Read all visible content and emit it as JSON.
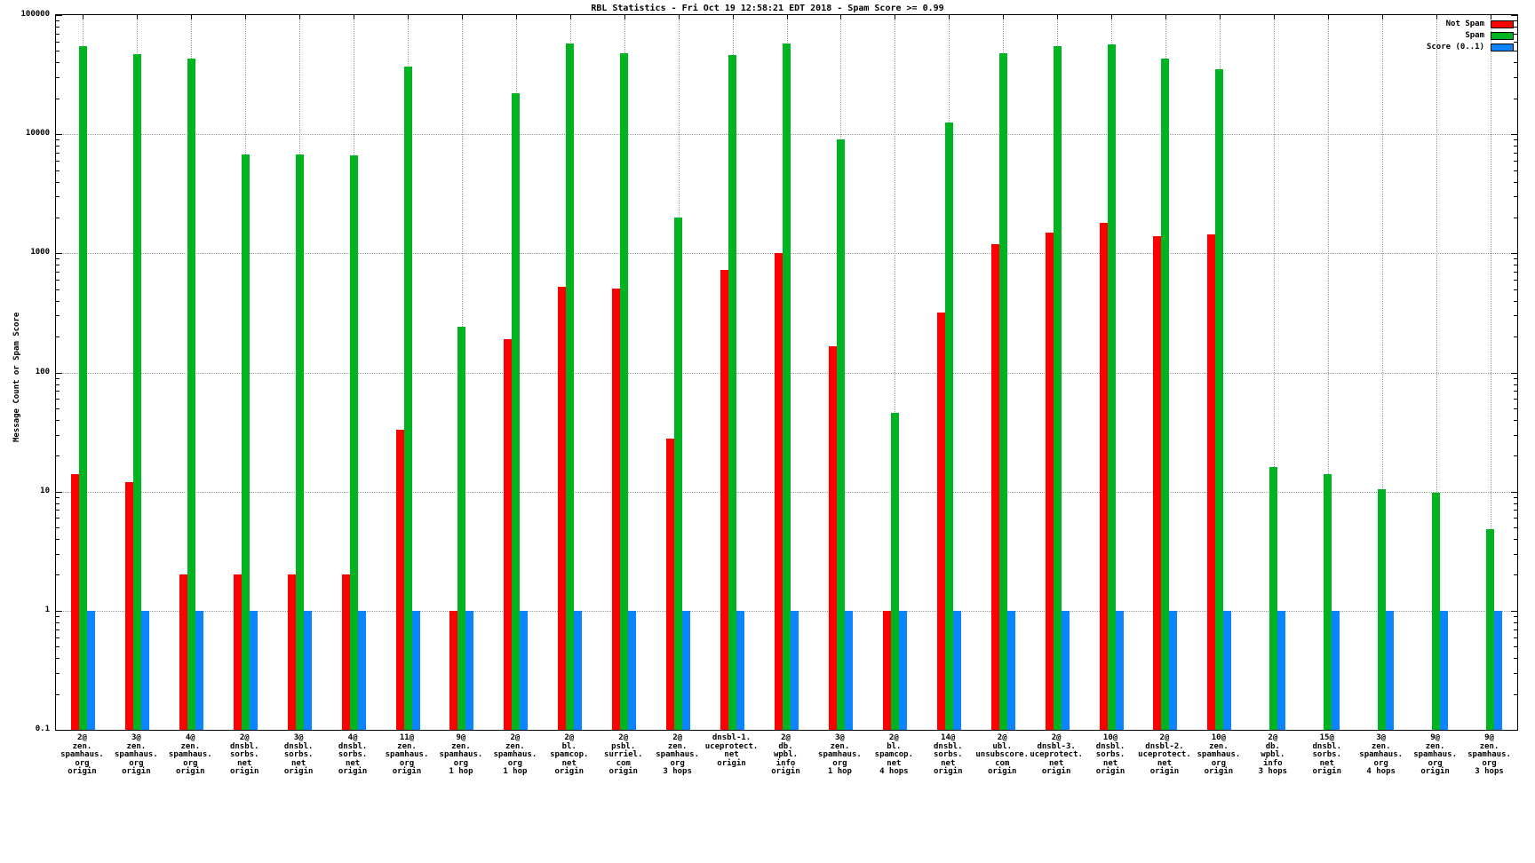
{
  "title": "RBL Statistics - Fri Oct 19 12:58:21 EDT 2018 - Spam Score >= 0.99",
  "ylabel": "Message Count or Spam Score",
  "legend": [
    {
      "label": "Not Spam",
      "color": "#ff0000"
    },
    {
      "label": "Spam",
      "color": "#00b321"
    },
    {
      "label": "Score (0..1)",
      "color": "#0a84ff"
    }
  ],
  "chart_data": {
    "type": "bar",
    "scale": "log",
    "title": "RBL Statistics - Fri Oct 19 12:58:21 EDT 2018 - Spam Score >= 0.99",
    "xlabel": "",
    "ylabel": "Message Count or Spam Score",
    "ylim": [
      0.1,
      100000
    ],
    "yticks": [
      0.1,
      1,
      10,
      100,
      1000,
      10000,
      100000
    ],
    "grid": true,
    "legend_position": "top-right",
    "categories": [
      [
        "2@",
        "zen.",
        "spamhaus.",
        "org",
        "origin"
      ],
      [
        "3@",
        "zen.",
        "spamhaus.",
        "org",
        "origin"
      ],
      [
        "4@",
        "zen.",
        "spamhaus.",
        "org",
        "origin"
      ],
      [
        "2@",
        "dnsbl.",
        "sorbs.",
        "net",
        "origin"
      ],
      [
        "3@",
        "dnsbl.",
        "sorbs.",
        "net",
        "origin"
      ],
      [
        "4@",
        "dnsbl.",
        "sorbs.",
        "net",
        "origin"
      ],
      [
        "11@",
        "zen.",
        "spamhaus.",
        "org",
        "origin"
      ],
      [
        "9@",
        "zen.",
        "spamhaus.",
        "org",
        "1 hop"
      ],
      [
        "2@",
        "zen.",
        "spamhaus.",
        "org",
        "1 hop"
      ],
      [
        "2@",
        "bl.",
        "spamcop.",
        "net",
        "origin"
      ],
      [
        "2@",
        "psbl.",
        "surriel.",
        "com",
        "origin"
      ],
      [
        "2@",
        "zen.",
        "spamhaus.",
        "org",
        "3 hops"
      ],
      [
        "dnsbl-1.",
        "uceprotect.",
        "net",
        "origin"
      ],
      [
        "2@",
        "db.",
        "wpbl.",
        "info",
        "origin"
      ],
      [
        "3@",
        "zen.",
        "spamhaus.",
        "org",
        "1 hop"
      ],
      [
        "2@",
        "bl.",
        "spamcop.",
        "net",
        "4 hops"
      ],
      [
        "14@",
        "dnsbl.",
        "sorbs.",
        "net",
        "origin"
      ],
      [
        "2@",
        "ubl.",
        "unsubscore.",
        "com",
        "origin"
      ],
      [
        "2@",
        "dnsbl-3.",
        "uceprotect.",
        "net",
        "origin"
      ],
      [
        "10@",
        "dnsbl.",
        "sorbs.",
        "net",
        "origin"
      ],
      [
        "2@",
        "dnsbl-2.",
        "uceprotect.",
        "net",
        "origin"
      ],
      [
        "10@",
        "zen.",
        "spamhaus.",
        "org",
        "origin"
      ],
      [
        "2@",
        "db.",
        "wpbl.",
        "info",
        "3 hops"
      ],
      [
        "15@",
        "dnsbl.",
        "sorbs.",
        "net",
        "origin"
      ],
      [
        "3@",
        "zen.",
        "spamhaus.",
        "org",
        "4 hops"
      ],
      [
        "9@",
        "zen.",
        "spamhaus.",
        "org",
        "origin"
      ],
      [
        "9@",
        "zen.",
        "spamhaus.",
        "org",
        "3 hops"
      ]
    ],
    "series": [
      {
        "name": "Not Spam",
        "color": "#ff0000",
        "values": [
          14,
          12,
          2,
          2,
          2,
          2,
          33,
          1,
          190,
          520,
          510,
          28,
          730,
          1000,
          165,
          1,
          320,
          1200,
          1500,
          1800,
          1400,
          1450,
          null,
          null,
          null,
          null,
          null
        ]
      },
      {
        "name": "Spam",
        "color": "#00b321",
        "values": [
          55000,
          47000,
          43000,
          6800,
          6800,
          6600,
          37000,
          240,
          22000,
          58000,
          48000,
          2000,
          46000,
          58000,
          9000,
          46,
          12500,
          48000,
          55000,
          57000,
          43000,
          35000,
          16,
          14,
          10.5,
          9.8,
          4.8
        ]
      },
      {
        "name": "Score (0..1)",
        "color": "#0a84ff",
        "values": [
          1,
          1,
          1,
          1,
          1,
          1,
          1,
          1,
          1,
          1,
          1,
          1,
          1,
          1,
          1,
          1,
          1,
          1,
          1,
          1,
          1,
          1,
          1,
          1,
          1,
          1,
          1
        ]
      }
    ]
  }
}
